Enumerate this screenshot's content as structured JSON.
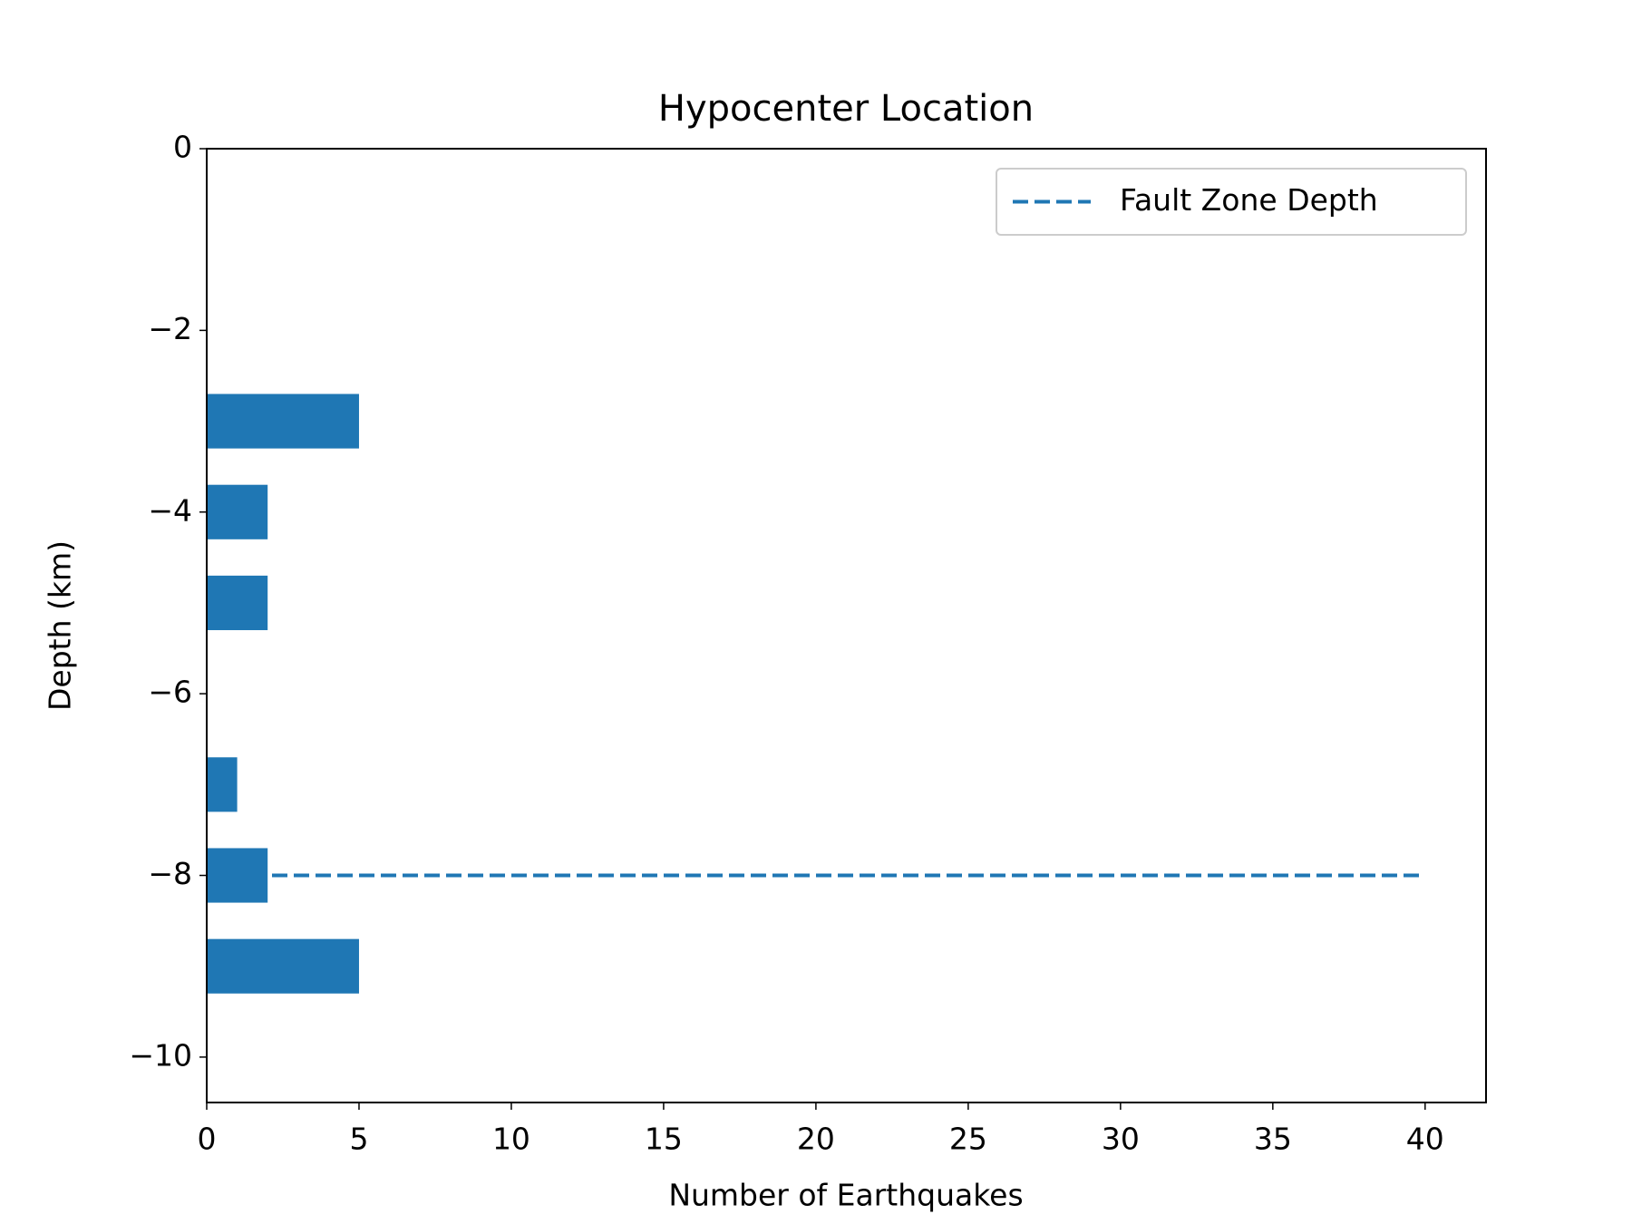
{
  "chart_data": {
    "type": "barh",
    "title": "Hypocenter Location",
    "x_label": "Number of Earthquakes",
    "y_label": "Depth (km)",
    "y": [
      -3,
      -4,
      -5,
      -7,
      -8,
      -9
    ],
    "values": [
      5,
      2,
      2,
      1,
      2,
      5
    ],
    "color": "#1f77b4",
    "lines": [
      {
        "name": "Fault Zone Depth",
        "color": "#1f77b4",
        "style": "dashed",
        "x": [
          0,
          40
        ],
        "y": [
          -8,
          -8
        ]
      }
    ],
    "xlim": [
      0,
      42
    ],
    "xticks": [
      0,
      5,
      10,
      15,
      20,
      25,
      30,
      35,
      40
    ],
    "ylim": [
      -10.5,
      0
    ],
    "yticks": [
      0,
      {
        "value": -2,
        "label": "−2"
      },
      {
        "value": -4,
        "label": "−4"
      },
      {
        "value": -6,
        "label": "−6"
      },
      {
        "value": -8,
        "label": "−8"
      },
      {
        "value": -10,
        "label": "−10"
      }
    ],
    "legend": "upper right"
  }
}
